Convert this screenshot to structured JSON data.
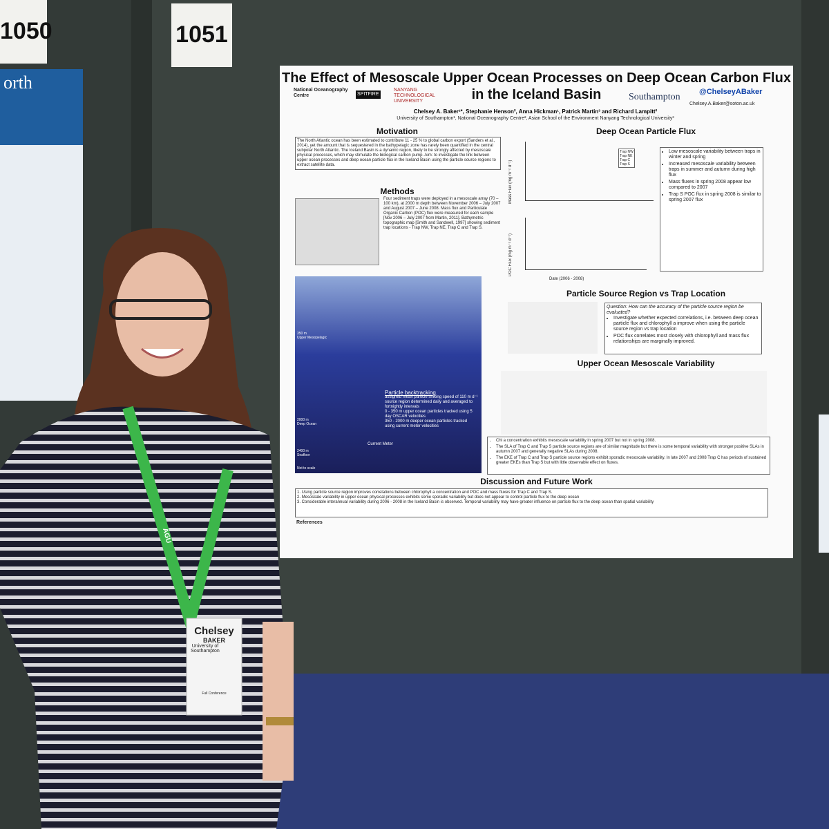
{
  "booths": [
    "1050",
    "1051"
  ],
  "left_poster": {
    "fragment": "orth"
  },
  "poster": {
    "title": "The Effect of Mesoscale Upper Ocean Processes on Deep Ocean Carbon Flux in the Iceland Basin",
    "logos": [
      "National Oceanography Centre",
      "SPITFIRE",
      "NANYANG TECHNOLOGICAL UNIVERSITY",
      "Southampton"
    ],
    "handle": "@ChelseyABaker",
    "email": "Chelsey.A.Baker@soton.ac.uk",
    "authors": "Chelsey A. Baker¹*, Stephanie Henson², Anna Hickman¹, Patrick Martin³ and Richard Lampitt²",
    "affiliations": "University of Southampton¹, National Oceanography Centre², Asian School of the Environment Nanyang Technological University³",
    "motivation": {
      "heading": "Motivation",
      "text": "The North Atlantic ocean has been estimated to contribute 11 - 25 % to global carbon export (Sanders et al., 2014), yet the amount that is sequestered in the bathypelagic zone has rarely been quantified in the central subpolar North Atlantic. The Iceland Basin is a dynamic region, likely to be strongly affected by mesoscale physical processes, which may stimulate the biological carbon pump. Aim: to investigate the link between upper ocean processes and deep ocean particle flux in the Iceland Basin using the particle source regions to extract satellite data."
    },
    "methods": {
      "heading": "Methods",
      "text": "Four sediment traps were deployed in a mesoscale array (70 – 100 km), at 2000 m depth between November 2006 – July 2007 and August 2007 – June 2008. Mass flux and Particulate Organic Carbon (POC) flux were measured for each sample [Nov 2006 – July 2007 from Martin, 2011]. Bathymetric topographic map [Smith and Sandwell, 1997] showing sediment trap locations - Trap NW, Trap NE, Trap C and Trap S."
    },
    "diagram": {
      "heading": "Particle backtracking",
      "items": [
        "assigned mean particle sinking speed of 110 m d⁻¹",
        "source region determined daily and averaged to fortnightly intervals",
        "0 - 350 m upper ocean particles tracked using 5 day OSCAR velocities",
        "350 - 2000 m deeper ocean particles tracked using current meter velocities"
      ],
      "labels": [
        "350 m",
        "Upper Mesopelagic",
        "2000 m",
        "Deep Ocean",
        "2400 m",
        "Seafloor",
        "Current Meter",
        "Not to scale"
      ]
    },
    "flux": {
      "heading": "Deep Ocean Particle Flux",
      "ylabels": [
        "Mass Flux (mg m⁻² d⁻¹)",
        "POC Flux (mg m⁻² d⁻¹)"
      ],
      "xlabel": "Date (2006 - 2008)",
      "legend": [
        "Trap NW",
        "Trap NE",
        "Trap C",
        "Trap S"
      ],
      "bullets": [
        "Low mesoscale variability between traps in winter and spring",
        "Increased mesoscale variability between traps in summer and autumn during high flux",
        "Mass fluxes in spring 2008 appear low compared to 2007",
        "Trap S POC flux in spring 2008 is similar to spring 2007 flux"
      ]
    },
    "source": {
      "heading": "Particle Source Region vs Trap Location",
      "question": "Question: How can the accuracy of the particle source region be evaluated?",
      "bullets": [
        "Investigate whether expected correlations, i.e. between deep ocean particle flux and chlorophyll a improve when using the particle source region vs trap location",
        "POC flux correlates most closely with chlorophyll and mass flux relationships are marginally improved."
      ]
    },
    "meso": {
      "heading": "Upper Ocean Mesoscale Variability",
      "bullets": [
        "Chl a concentration exhibits mesoscale variability in spring 2007 but not in spring 2008.",
        "The SLA of Trap C and Trap S particle source regions are of similar magnitude but there is some temporal variability with stronger positive SLAs in autumn 2007 and generally negative SLAs during 2008.",
        "The EKE of Trap C and Trap S particle source regions exhibit sporadic mesoscale variability. In late 2007 and 2008 Trap C has periods of sustained greater EKEs than Trap S but with little observable effect on fluxes."
      ]
    },
    "discussion": {
      "heading": "Discussion and Future Work",
      "items": [
        "1. Using particle source region improves correlations between chlorophyll a concentration and POC and mass fluxes for Trap C and Trap S.",
        "2. Mesoscale variability in upper ocean physical processes exhibits some sporadic variability but does not appear to control particle flux to the deep ocean",
        "3. Considerable interannual variability during 2006 - 2008 in the Iceland Basin is observed. Temporal variability may have greater influence on particle flux to the deep ocean than spatial variability"
      ]
    },
    "references": "References"
  },
  "badge": {
    "first": "Chelsey",
    "last": "BAKER",
    "org": "University of Southampton",
    "type": "Full Conference"
  },
  "lanyard": "AGU"
}
